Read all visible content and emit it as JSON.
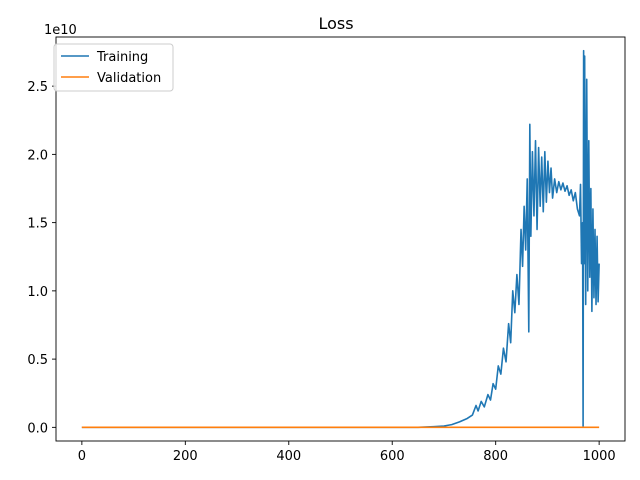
{
  "chart_data": {
    "type": "line",
    "title": "Loss",
    "xlabel": "",
    "ylabel": "",
    "y_offset_label": "1e10",
    "xlim": [
      -50,
      1050
    ],
    "ylim": [
      -1000000000.0,
      28600000000.0
    ],
    "x_ticks": [
      0,
      200,
      400,
      600,
      800,
      1000
    ],
    "x_tick_labels": [
      "0",
      "200",
      "400",
      "600",
      "800",
      "1000"
    ],
    "y_ticks": [
      0,
      5000000000.0,
      10000000000.0,
      15000000000.0,
      20000000000.0,
      25000000000.0
    ],
    "y_tick_labels": [
      "0.0",
      "0.5",
      "1.0",
      "1.5",
      "2.0",
      "2.5"
    ],
    "grid": false,
    "legend_position": "top-left",
    "series": [
      {
        "name": "Training",
        "color": "#1f77b4",
        "points": [
          [
            0,
            0
          ],
          [
            100,
            0
          ],
          [
            200,
            0
          ],
          [
            300,
            0
          ],
          [
            400,
            0
          ],
          [
            500,
            0
          ],
          [
            600,
            0
          ],
          [
            650,
            0
          ],
          [
            680,
            50000000.0
          ],
          [
            700,
            100000000.0
          ],
          [
            715,
            200000000.0
          ],
          [
            730,
            400000000.0
          ],
          [
            745,
            650000000.0
          ],
          [
            755,
            900000000.0
          ],
          [
            762,
            1600000000.0
          ],
          [
            766,
            1200000000.0
          ],
          [
            772,
            1900000000.0
          ],
          [
            778,
            1500000000.0
          ],
          [
            785,
            2400000000.0
          ],
          [
            790,
            2000000000.0
          ],
          [
            795,
            3200000000.0
          ],
          [
            800,
            2800000000.0
          ],
          [
            805,
            4500000000.0
          ],
          [
            810,
            3900000000.0
          ],
          [
            815,
            5800000000.0
          ],
          [
            820,
            4800000000.0
          ],
          [
            825,
            7600000000.0
          ],
          [
            829,
            6200000000.0
          ],
          [
            833,
            10000000000.0
          ],
          [
            837,
            8400000000.0
          ],
          [
            841,
            11200000000.0
          ],
          [
            845,
            9000000000.0
          ],
          [
            849,
            14500000000.0
          ],
          [
            852,
            11800000000.0
          ],
          [
            855,
            16200000000.0
          ],
          [
            858,
            13000000000.0
          ],
          [
            861,
            18200000000.0
          ],
          [
            864,
            7000000000.0
          ],
          [
            866,
            22200000000.0
          ],
          [
            868,
            14000000000.0
          ],
          [
            871,
            20200000000.0
          ],
          [
            874,
            15500000000.0
          ],
          [
            877,
            21000000000.0
          ],
          [
            880,
            14500000000.0
          ],
          [
            883,
            20500000000.0
          ],
          [
            886,
            16200000000.0
          ],
          [
            889,
            19800000000.0
          ],
          [
            892,
            15800000000.0
          ],
          [
            895,
            20200000000.0
          ],
          [
            898,
            16500000000.0
          ],
          [
            901,
            19500000000.0
          ],
          [
            904,
            17200000000.0
          ],
          [
            907,
            19000000000.0
          ],
          [
            910,
            16800000000.0
          ],
          [
            914,
            18200000000.0
          ],
          [
            918,
            17200000000.0
          ],
          [
            922,
            18000000000.0
          ],
          [
            926,
            17400000000.0
          ],
          [
            930,
            17900000000.0
          ],
          [
            934,
            17300000000.0
          ],
          [
            938,
            17700000000.0
          ],
          [
            942,
            17000000000.0
          ],
          [
            946,
            17400000000.0
          ],
          [
            950,
            16600000000.0
          ],
          [
            954,
            17200000000.0
          ],
          [
            958,
            16000000000.0
          ],
          [
            962,
            15500000000.0
          ],
          [
            964,
            17800000000.0
          ],
          [
            966,
            12000000000.0
          ],
          [
            968,
            15000000000.0
          ],
          [
            969,
            100000000.0
          ],
          [
            970,
            27600000000.0
          ],
          [
            971,
            12000000000.0
          ],
          [
            972,
            27200000000.0
          ],
          [
            974,
            9000000000.0
          ],
          [
            976,
            25500000000.0
          ],
          [
            978,
            10000000000.0
          ],
          [
            980,
            21000000000.0
          ],
          [
            982,
            11000000000.0
          ],
          [
            984,
            17500000000.0
          ],
          [
            986,
            8500000000.0
          ],
          [
            988,
            16000000000.0
          ],
          [
            990,
            9500000000.0
          ],
          [
            992,
            14500000000.0
          ],
          [
            994,
            9000000000.0
          ],
          [
            996,
            14000000000.0
          ],
          [
            998,
            9200000000.0
          ],
          [
            1000,
            12000000000.0
          ]
        ]
      },
      {
        "name": "Validation",
        "color": "#ff7f0e",
        "points": [
          [
            0,
            0
          ],
          [
            1000,
            0
          ]
        ]
      }
    ]
  }
}
